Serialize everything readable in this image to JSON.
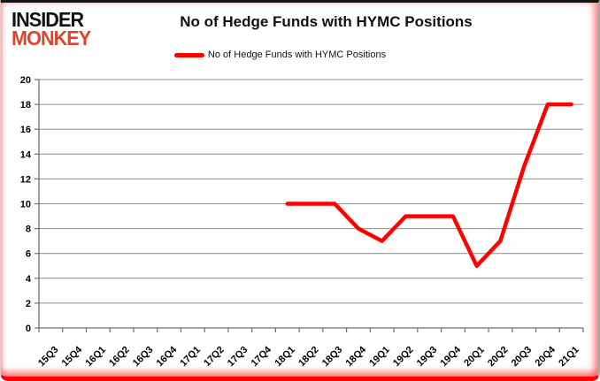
{
  "logo": {
    "line1": "INSIDER",
    "line2": "MONKEY"
  },
  "header": {
    "title": "No of Hedge Funds with HYMC Positions"
  },
  "legend": {
    "label": "No of Hedge Funds with HYMC Positions",
    "marker_color": "#FF0000"
  },
  "colors": {
    "line": "#FF0000",
    "grid": "#8C8C8C",
    "axis": "#6E6E6E",
    "text": "#000000",
    "logo_black": "#111111",
    "logo_red": "#D9472B",
    "border_glow": "#FF0000"
  },
  "chart_data": {
    "type": "line",
    "title": "No of Hedge Funds with HYMC Positions",
    "xlabel": "",
    "ylabel": "",
    "categories": [
      "15Q3",
      "15Q4",
      "16Q1",
      "16Q2",
      "16Q3",
      "16Q4",
      "17Q1",
      "17Q2",
      "17Q3",
      "17Q4",
      "18Q1",
      "18Q2",
      "18Q3",
      "18Q4",
      "19Q1",
      "19Q2",
      "19Q3",
      "19Q4",
      "20Q1",
      "20Q2",
      "20Q3",
      "20Q4",
      "21Q1"
    ],
    "series": [
      {
        "name": "No of Hedge Funds with HYMC Positions",
        "color": "#FF0000",
        "values": [
          null,
          null,
          null,
          null,
          null,
          null,
          null,
          null,
          null,
          null,
          10,
          10,
          10,
          8,
          7,
          9,
          9,
          9,
          5,
          7,
          13,
          18,
          18
        ]
      }
    ],
    "ylim": [
      0,
      20
    ],
    "yticks": [
      0,
      2,
      4,
      6,
      8,
      10,
      12,
      14,
      16,
      18,
      20
    ],
    "grid": true,
    "legend_position": "top"
  }
}
